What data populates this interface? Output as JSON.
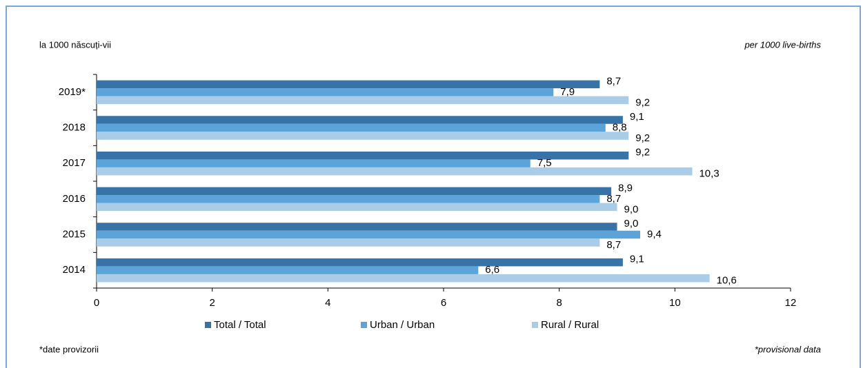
{
  "chart_data": {
    "type": "bar",
    "orientation": "horizontal",
    "subtitle_left": "la 1000 născuți-vii",
    "subtitle_right": "per 1000 live-births",
    "note_left": "*date provizorii",
    "note_right": "*provisional data",
    "categories": [
      "2019*",
      "2018",
      "2017",
      "2016",
      "2015",
      "2014"
    ],
    "series": [
      {
        "name": "Total / Total",
        "color": "#3873a8",
        "values": [
          8.7,
          9.1,
          9.2,
          8.9,
          9.0,
          9.1
        ],
        "value_labels": [
          "8,7",
          "9,1",
          "9,2",
          "8,9",
          "9,0",
          "9,1"
        ]
      },
      {
        "name": "Urban / Urban",
        "color": "#5ca3d9",
        "values": [
          7.9,
          8.8,
          7.5,
          8.7,
          9.4,
          6.6
        ],
        "value_labels": [
          "7,9",
          "8,8",
          "7,5",
          "8,7",
          "9,4",
          "6,6"
        ]
      },
      {
        "name": "Rural / Rural",
        "color": "#a9cde9",
        "values": [
          9.2,
          9.2,
          10.3,
          9.0,
          8.7,
          10.6
        ],
        "value_labels": [
          "9,2",
          "9,2",
          "10,3",
          "9,0",
          "8,7",
          "10,6"
        ]
      }
    ],
    "xlim": [
      0,
      12
    ],
    "xticks": [
      0,
      2,
      4,
      6,
      8,
      10,
      12
    ],
    "legend": "bottom"
  }
}
